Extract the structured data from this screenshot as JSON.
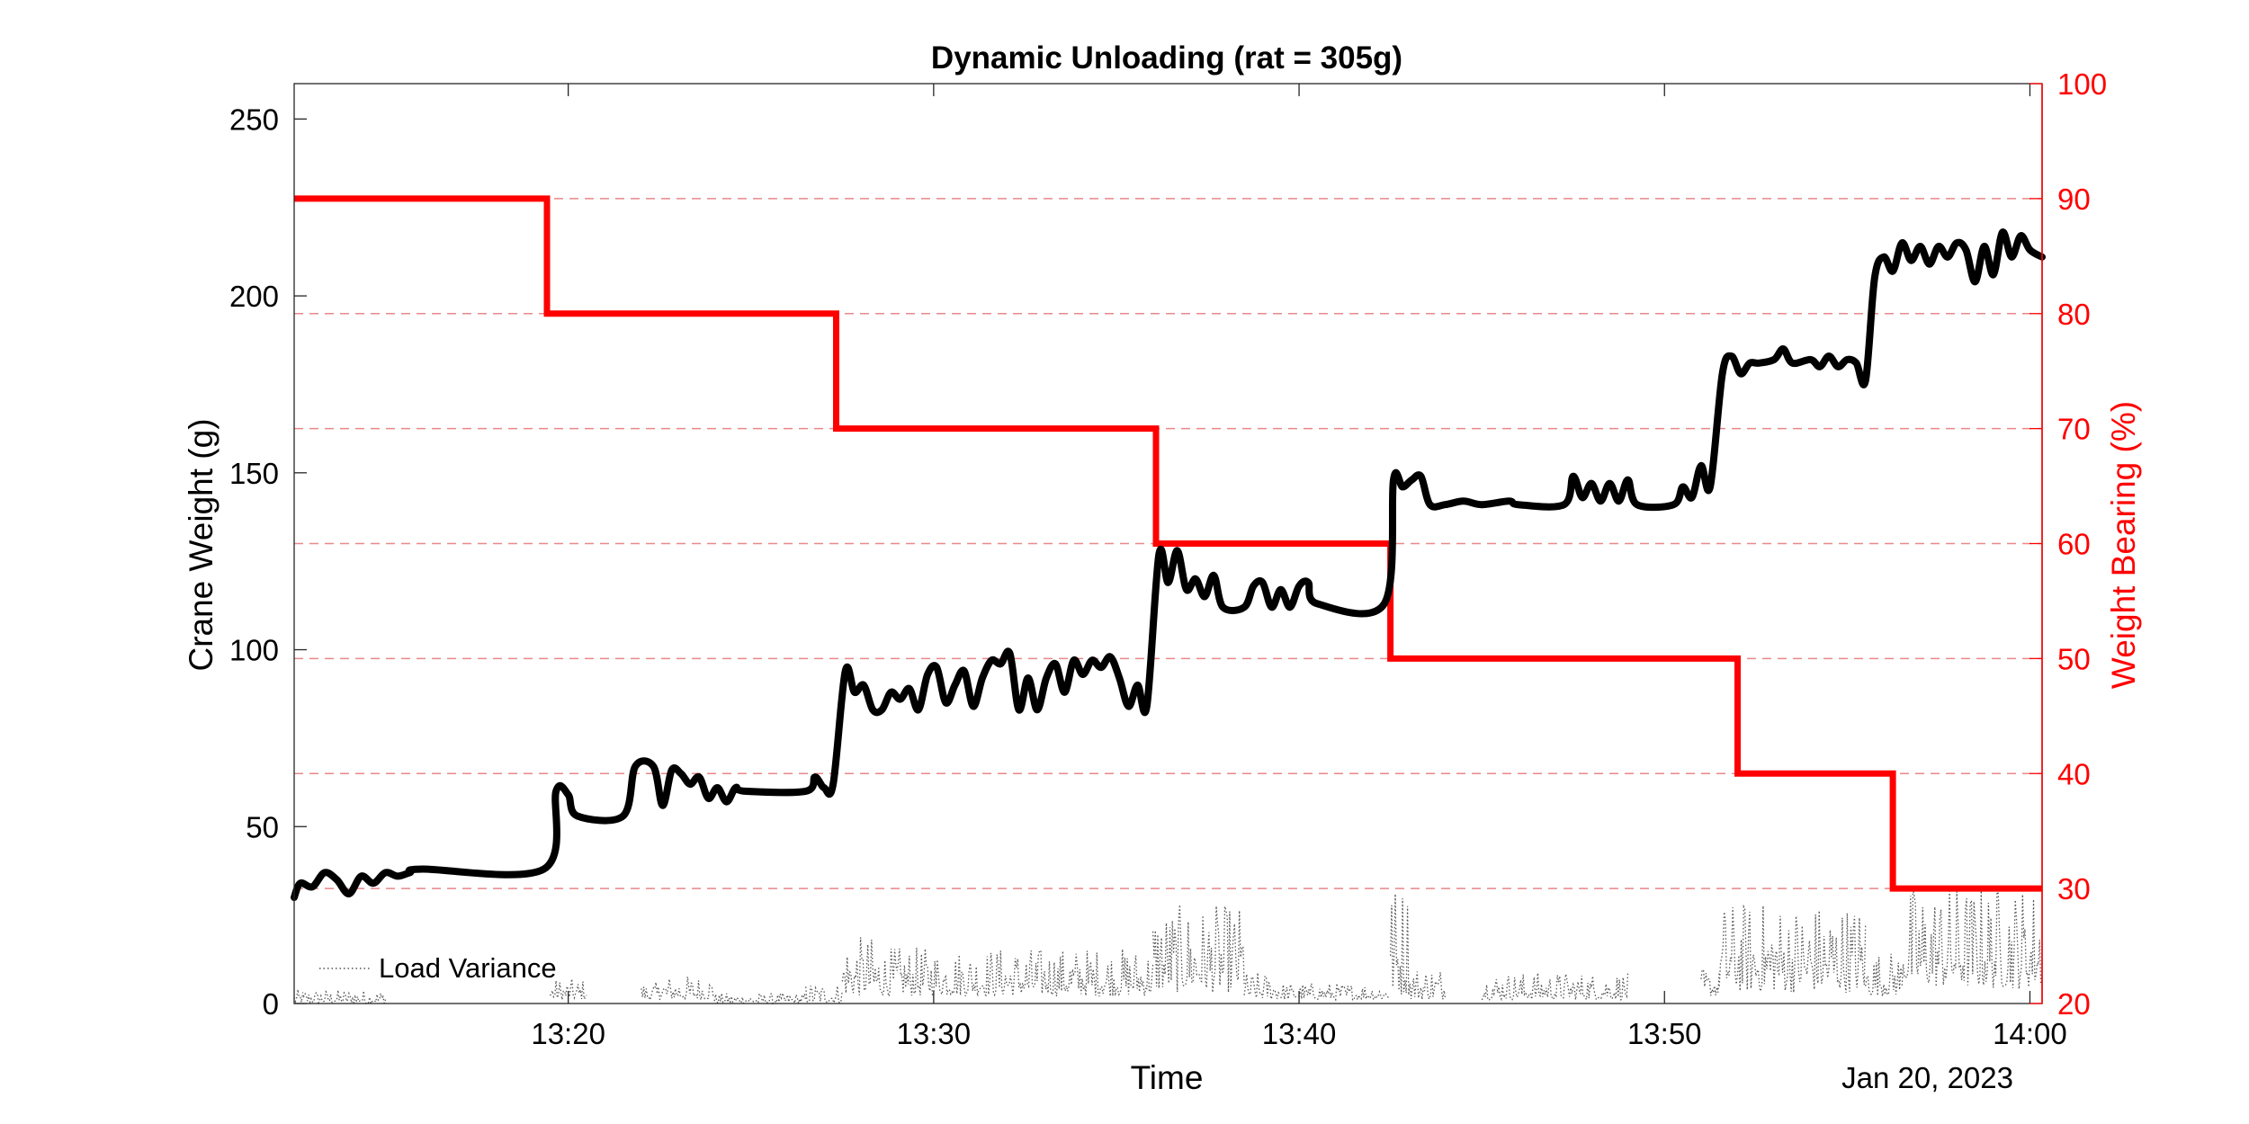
{
  "chart_data": {
    "type": "line",
    "title": "Dynamic Unloading (rat = 305g)",
    "xlabel": "Time",
    "x_date_label": "Jan 20, 2023",
    "x_range": [
      "13:12:30",
      "14:00:20"
    ],
    "x_ticks": [
      "13:20",
      "13:30",
      "13:40",
      "13:50",
      "14:00"
    ],
    "y_left": {
      "label": "Crane Weight (g)",
      "range": [
        0,
        260
      ],
      "ticks": [
        "0",
        "50",
        "100",
        "150",
        "200",
        "250"
      ],
      "color": "#000000"
    },
    "y_right": {
      "label": "Weight Bearing (%)",
      "range": [
        20,
        100
      ],
      "ticks": [
        "20",
        "30",
        "40",
        "50",
        "60",
        "70",
        "80",
        "90",
        "100"
      ],
      "color": "#ff0000"
    },
    "grid": "dashed red horizontal lines at right-axis ticks",
    "legend_position": "bottom-left",
    "series": [
      {
        "name": "Load Variance",
        "axis": "left",
        "style": "dotted",
        "color": "#555555",
        "segments": [
          {
            "start": "13:12:30",
            "end": "13:15:00",
            "base": 0,
            "amp": 4
          },
          {
            "start": "13:19:30",
            "end": "13:20:30",
            "base": 1,
            "amp": 6
          },
          {
            "start": "13:22:00",
            "end": "13:22:30",
            "base": 1,
            "amp": 5
          },
          {
            "start": "13:22:30",
            "end": "13:24:00",
            "base": 1,
            "amp": 7
          },
          {
            "start": "13:24:00",
            "end": "13:26:30",
            "base": 0,
            "amp": 3
          },
          {
            "start": "13:26:30",
            "end": "13:27:30",
            "base": 0,
            "amp": 6
          },
          {
            "start": "13:27:30",
            "end": "13:28:30",
            "base": 2,
            "amp": 17
          },
          {
            "start": "13:28:30",
            "end": "13:36:00",
            "base": 2,
            "amp": 14
          },
          {
            "start": "13:36:00",
            "end": "13:38:30",
            "base": 3,
            "amp": 25
          },
          {
            "start": "13:38:30",
            "end": "13:39:30",
            "base": 1,
            "amp": 8
          },
          {
            "start": "13:39:30",
            "end": "13:42:30",
            "base": 1,
            "amp": 5
          },
          {
            "start": "13:42:30",
            "end": "13:43:00",
            "base": 2,
            "amp": 33
          },
          {
            "start": "13:43:00",
            "end": "13:44:00",
            "base": 1,
            "amp": 10
          },
          {
            "start": "13:45:00",
            "end": "13:49:00",
            "base": 1,
            "amp": 8
          },
          {
            "start": "13:51:00",
            "end": "13:51:30",
            "base": 2,
            "amp": 8
          },
          {
            "start": "13:51:30",
            "end": "13:55:30",
            "base": 3,
            "amp": 26
          },
          {
            "start": "13:55:30",
            "end": "13:56:30",
            "base": 2,
            "amp": 13
          },
          {
            "start": "13:56:30",
            "end": "14:00:20",
            "base": 4,
            "amp": 30
          }
        ]
      },
      {
        "name": "Crane Weight",
        "axis": "left",
        "style": "solid",
        "color": "#000000",
        "points": [
          [
            "13:12:30",
            30
          ],
          [
            "13:12:40",
            34
          ],
          [
            "13:13:00",
            33
          ],
          [
            "13:13:20",
            37
          ],
          [
            "13:13:40",
            35
          ],
          [
            "13:14:00",
            31
          ],
          [
            "13:14:20",
            36
          ],
          [
            "13:14:40",
            34
          ],
          [
            "13:15:00",
            37
          ],
          [
            "13:15:20",
            36
          ],
          [
            "13:15:40",
            37
          ],
          [
            "13:16:00",
            38
          ],
          [
            "13:19:20",
            38
          ],
          [
            "13:19:40",
            60
          ],
          [
            "13:20:00",
            59
          ],
          [
            "13:20:15",
            53
          ],
          [
            "13:21:30",
            53
          ],
          [
            "13:21:50",
            67
          ],
          [
            "13:22:20",
            67
          ],
          [
            "13:22:35",
            56
          ],
          [
            "13:22:50",
            66
          ],
          [
            "13:23:05",
            65
          ],
          [
            "13:23:20",
            62
          ],
          [
            "13:23:35",
            64
          ],
          [
            "13:23:50",
            58
          ],
          [
            "13:24:05",
            61
          ],
          [
            "13:24:20",
            57
          ],
          [
            "13:24:35",
            61
          ],
          [
            "13:24:50",
            60
          ],
          [
            "13:26:30",
            60
          ],
          [
            "13:26:45",
            64
          ],
          [
            "13:27:00",
            61
          ],
          [
            "13:27:15",
            62
          ],
          [
            "13:27:35",
            94
          ],
          [
            "13:27:50",
            88
          ],
          [
            "13:28:05",
            90
          ],
          [
            "13:28:20",
            83
          ],
          [
            "13:28:35",
            83
          ],
          [
            "13:28:50",
            88
          ],
          [
            "13:29:05",
            86
          ],
          [
            "13:29:20",
            89
          ],
          [
            "13:29:35",
            83
          ],
          [
            "13:29:50",
            93
          ],
          [
            "13:30:05",
            95
          ],
          [
            "13:30:20",
            85
          ],
          [
            "13:30:35",
            90
          ],
          [
            "13:30:50",
            94
          ],
          [
            "13:31:05",
            84
          ],
          [
            "13:31:20",
            92
          ],
          [
            "13:31:35",
            97
          ],
          [
            "13:31:50",
            96
          ],
          [
            "13:32:05",
            99
          ],
          [
            "13:32:20",
            83
          ],
          [
            "13:32:35",
            92
          ],
          [
            "13:32:50",
            83
          ],
          [
            "13:33:05",
            92
          ],
          [
            "13:33:20",
            96
          ],
          [
            "13:33:35",
            88
          ],
          [
            "13:33:50",
            97
          ],
          [
            "13:34:05",
            93
          ],
          [
            "13:34:20",
            97
          ],
          [
            "13:34:35",
            95
          ],
          [
            "13:34:50",
            98
          ],
          [
            "13:35:05",
            92
          ],
          [
            "13:35:20",
            84
          ],
          [
            "13:35:35",
            90
          ],
          [
            "13:35:50",
            84
          ],
          [
            "13:36:10",
            127
          ],
          [
            "13:36:25",
            119
          ],
          [
            "13:36:40",
            128
          ],
          [
            "13:36:55",
            117
          ],
          [
            "13:37:10",
            120
          ],
          [
            "13:37:25",
            115
          ],
          [
            "13:37:40",
            121
          ],
          [
            "13:37:55",
            112
          ],
          [
            "13:38:30",
            112
          ],
          [
            "13:38:45",
            118
          ],
          [
            "13:39:00",
            119
          ],
          [
            "13:39:15",
            112
          ],
          [
            "13:39:30",
            117
          ],
          [
            "13:39:45",
            112
          ],
          [
            "13:40:00",
            118
          ],
          [
            "13:40:15",
            119
          ],
          [
            "13:40:30",
            113
          ],
          [
            "13:42:20",
            113
          ],
          [
            "13:42:35",
            148
          ],
          [
            "13:42:50",
            146
          ],
          [
            "13:43:05",
            148
          ],
          [
            "13:43:20",
            149
          ],
          [
            "13:43:35",
            141
          ],
          [
            "13:44:00",
            141
          ],
          [
            "13:44:30",
            142
          ],
          [
            "13:45:00",
            141
          ],
          [
            "13:45:45",
            142
          ],
          [
            "13:46:00",
            141
          ],
          [
            "13:47:15",
            141
          ],
          [
            "13:47:30",
            149
          ],
          [
            "13:47:45",
            143
          ],
          [
            "13:48:00",
            147
          ],
          [
            "13:48:15",
            142
          ],
          [
            "13:48:30",
            147
          ],
          [
            "13:48:45",
            142
          ],
          [
            "13:49:00",
            148
          ],
          [
            "13:49:15",
            141
          ],
          [
            "13:50:15",
            141
          ],
          [
            "13:50:30",
            146
          ],
          [
            "13:50:45",
            143
          ],
          [
            "13:51:00",
            152
          ],
          [
            "13:51:15",
            146
          ],
          [
            "13:51:35",
            178
          ],
          [
            "13:51:50",
            183
          ],
          [
            "13:52:05",
            178
          ],
          [
            "13:52:20",
            181
          ],
          [
            "13:52:35",
            181
          ],
          [
            "13:53:00",
            182
          ],
          [
            "13:53:15",
            185
          ],
          [
            "13:53:30",
            181
          ],
          [
            "13:54:00",
            182
          ],
          [
            "13:54:15",
            180
          ],
          [
            "13:54:30",
            183
          ],
          [
            "13:54:45",
            180
          ],
          [
            "13:55:00",
            182
          ],
          [
            "13:55:15",
            181
          ],
          [
            "13:55:30",
            176
          ],
          [
            "13:55:45",
            205
          ],
          [
            "13:56:00",
            211
          ],
          [
            "13:56:15",
            207
          ],
          [
            "13:56:30",
            215
          ],
          [
            "13:56:45",
            210
          ],
          [
            "13:57:00",
            214
          ],
          [
            "13:57:15",
            209
          ],
          [
            "13:57:30",
            214
          ],
          [
            "13:57:45",
            211
          ],
          [
            "13:58:00",
            215
          ],
          [
            "13:58:15",
            213
          ],
          [
            "13:58:30",
            204
          ],
          [
            "13:58:45",
            214
          ],
          [
            "13:59:00",
            206
          ],
          [
            "13:59:15",
            218
          ],
          [
            "13:59:30",
            211
          ],
          [
            "13:59:45",
            217
          ],
          [
            "14:00:00",
            213
          ],
          [
            "14:00:20",
            211
          ]
        ]
      },
      {
        "name": "Weight Bearing",
        "axis": "right",
        "style": "step",
        "color": "#ff0000",
        "points": [
          [
            "13:12:30",
            90
          ],
          [
            "13:19:25",
            90
          ],
          [
            "13:19:25",
            80
          ],
          [
            "13:27:20",
            80
          ],
          [
            "13:27:20",
            70
          ],
          [
            "13:36:05",
            70
          ],
          [
            "13:36:05",
            60
          ],
          [
            "13:42:30",
            60
          ],
          [
            "13:42:30",
            50
          ],
          [
            "13:52:00",
            50
          ],
          [
            "13:52:00",
            40
          ],
          [
            "13:56:15",
            40
          ],
          [
            "13:56:15",
            30
          ],
          [
            "14:00:20",
            30
          ]
        ]
      }
    ]
  }
}
